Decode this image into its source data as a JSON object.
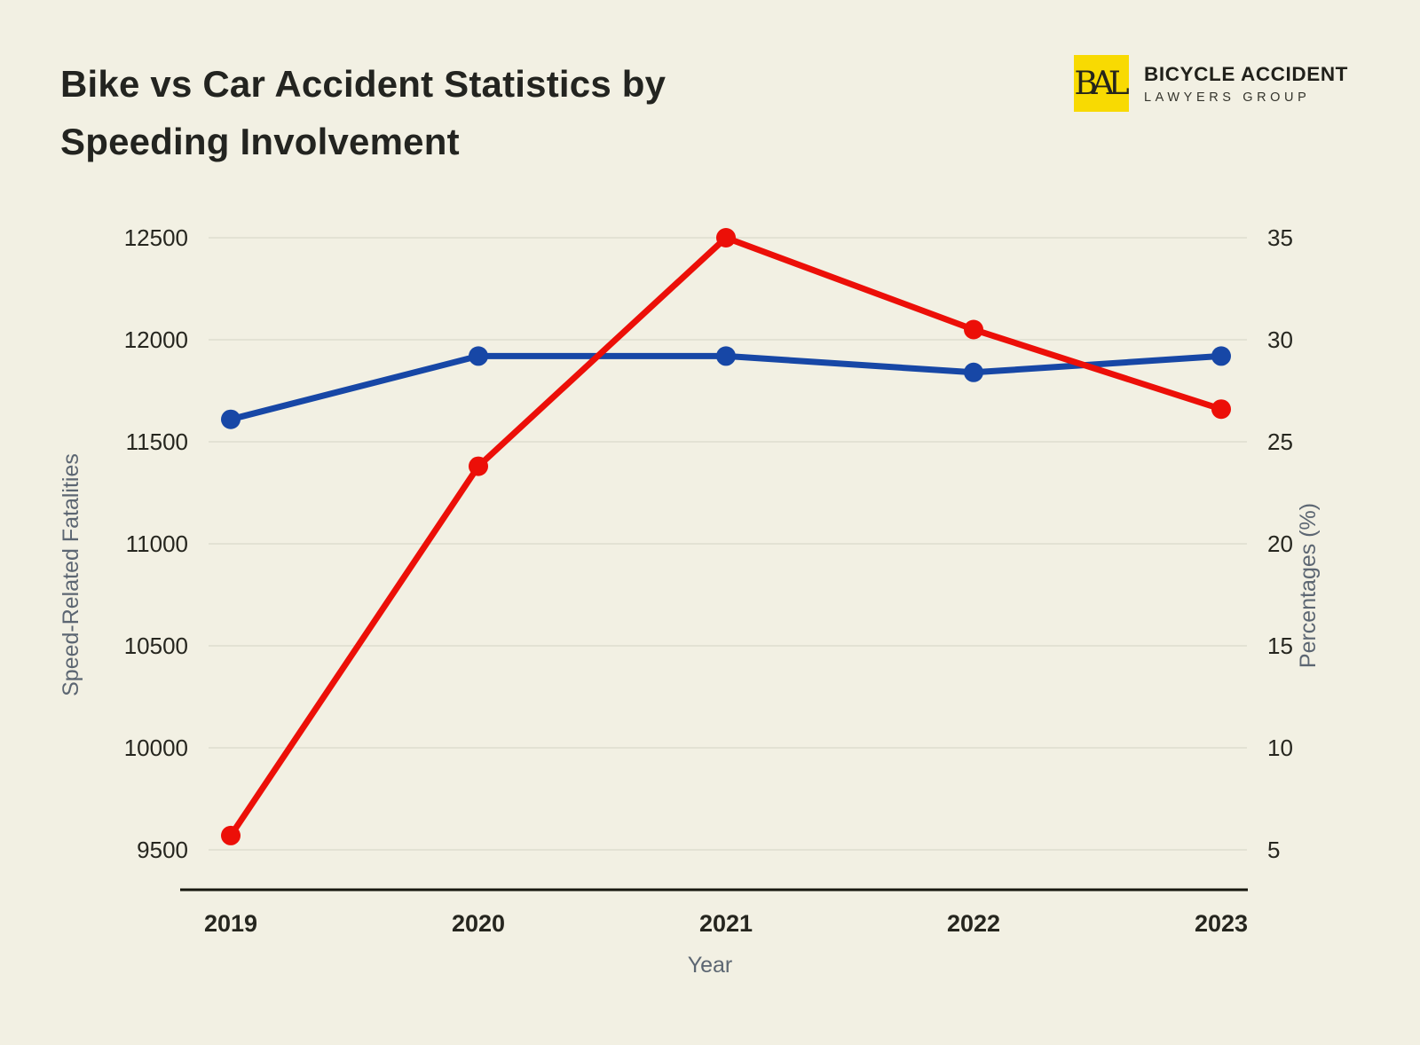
{
  "page": {
    "background_color": "#f2f0e3"
  },
  "header": {
    "title_line1": "Bike vs Car Accident Statistics by",
    "title_line2": "Speeding Involvement",
    "logo": {
      "monogram": "BAL",
      "name_line1": "BICYCLE ACCIDENT",
      "name_line2": "LAWYERS GROUP",
      "box_color": "#f8da02"
    }
  },
  "chart_data": {
    "type": "line",
    "categories": [
      "2019",
      "2020",
      "2021",
      "2022",
      "2023"
    ],
    "x_axis_label": "Year",
    "left_axis": {
      "label": "Speed-Related Fatalities",
      "min": 9500,
      "max": 12500,
      "ticks": [
        12500,
        12000,
        11500,
        11000,
        10500,
        10000,
        9500
      ]
    },
    "right_axis": {
      "label": "Percentages (%)",
      "min": 5,
      "max": 35,
      "ticks": [
        35,
        30,
        25,
        20,
        15,
        10,
        5
      ]
    },
    "series": [
      {
        "name": "percentages-line",
        "axis": "right",
        "color": "#1747a6",
        "values": [
          26.1,
          29.2,
          29.2,
          28.4,
          29.2
        ]
      },
      {
        "name": "speed-related-fatalities-line",
        "axis": "left",
        "color": "#ec0f08",
        "values": [
          9570,
          11380,
          12500,
          12050,
          11660
        ]
      }
    ],
    "grid": true,
    "legend": false,
    "colors": {
      "gridline": "#deddd0",
      "axis_line": "#17170f",
      "tick_text": "#26261f",
      "axis_title_text": "#5c6672"
    }
  }
}
